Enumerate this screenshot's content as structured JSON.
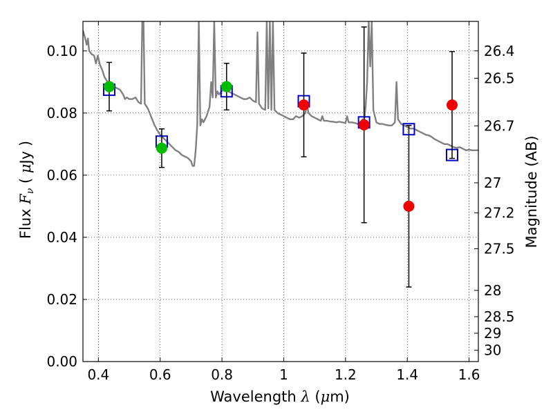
{
  "chart_data": {
    "type": "scatter",
    "title": "",
    "xlabel": "Wavelength  λ (μm)",
    "ylabel": "Flux  F_ν  ( μJy )",
    "ylabel_parts": {
      "prefix": "Flux  ",
      "F": "F",
      "nu": "ν",
      "open": "  ( ",
      "mu": "μ",
      "unit": "Jy )"
    },
    "xlabel_parts": {
      "prefix": "Wavelength  ",
      "lambda": "λ",
      "open": " (",
      "mu": "μ",
      "unit": "m)"
    },
    "y2label": "Magnitude (AB)",
    "xlim": [
      0.35,
      1.63
    ],
    "ylim": [
      0.0,
      0.1095
    ],
    "grid": true,
    "x_ticks": [
      {
        "v": 0.4,
        "label": "0.4"
      },
      {
        "v": 0.6,
        "label": "0.6"
      },
      {
        "v": 0.8,
        "label": "0.8"
      },
      {
        "v": 1.0,
        "label": "1"
      },
      {
        "v": 1.2,
        "label": "1.2"
      },
      {
        "v": 1.4,
        "label": "1.4"
      },
      {
        "v": 1.6,
        "label": "1.6"
      }
    ],
    "y_ticks": [
      {
        "v": 0.0,
        "label": "0.00"
      },
      {
        "v": 0.02,
        "label": "0.02"
      },
      {
        "v": 0.04,
        "label": "0.04"
      },
      {
        "v": 0.06,
        "label": "0.06"
      },
      {
        "v": 0.08,
        "label": "0.08"
      },
      {
        "v": 0.1,
        "label": "0.10"
      }
    ],
    "magnitude_ticks": [
      {
        "mag": 26.4,
        "label": "26.4"
      },
      {
        "mag": 26.5,
        "label": "26.5"
      },
      {
        "mag": 26.7,
        "label": "26.7"
      },
      {
        "mag": 27.0,
        "label": "27"
      },
      {
        "mag": 27.2,
        "label": "27.2"
      },
      {
        "mag": 27.5,
        "label": "27.5"
      },
      {
        "mag": 28.0,
        "label": "28"
      },
      {
        "mag": 28.5,
        "label": "28.5"
      },
      {
        "mag": 29.0,
        "label": "29"
      },
      {
        "mag": 30.0,
        "label": "30"
      }
    ],
    "series": [
      {
        "kind": "line",
        "color": "#808080",
        "points": [
          [
            0.35,
            0.1065
          ],
          [
            0.356,
            0.1045
          ],
          [
            0.362,
            0.102
          ],
          [
            0.366,
            0.104
          ],
          [
            0.37,
            0.1
          ],
          [
            0.378,
            0.099
          ],
          [
            0.386,
            0.0985
          ],
          [
            0.392,
            0.096
          ],
          [
            0.398,
            0.0985
          ],
          [
            0.405,
            0.0955
          ],
          [
            0.412,
            0.094
          ],
          [
            0.42,
            0.0915
          ],
          [
            0.43,
            0.09
          ],
          [
            0.44,
            0.089
          ],
          [
            0.45,
            0.0885
          ],
          [
            0.46,
            0.088
          ],
          [
            0.47,
            0.0875
          ],
          [
            0.48,
            0.086
          ],
          [
            0.486,
            0.0845
          ],
          [
            0.492,
            0.085
          ],
          [
            0.5,
            0.0845
          ],
          [
            0.51,
            0.0845
          ],
          [
            0.52,
            0.085
          ],
          [
            0.53,
            0.0835
          ],
          [
            0.538,
            0.083
          ],
          [
            0.542,
            0.1095
          ],
          [
            0.546,
            0.1095
          ],
          [
            0.55,
            0.083
          ],
          [
            0.56,
            0.0815
          ],
          [
            0.57,
            0.079
          ],
          [
            0.58,
            0.0765
          ],
          [
            0.59,
            0.0745
          ],
          [
            0.6,
            0.073
          ],
          [
            0.61,
            0.072
          ],
          [
            0.62,
            0.071
          ],
          [
            0.63,
            0.07
          ],
          [
            0.64,
            0.069
          ],
          [
            0.65,
            0.068
          ],
          [
            0.66,
            0.0675
          ],
          [
            0.67,
            0.0665
          ],
          [
            0.68,
            0.066
          ],
          [
            0.69,
            0.0655
          ],
          [
            0.7,
            0.0645
          ],
          [
            0.705,
            0.063
          ],
          [
            0.71,
            0.063
          ],
          [
            0.715,
            0.068
          ],
          [
            0.72,
            0.076
          ],
          [
            0.725,
            0.1095
          ],
          [
            0.73,
            0.076
          ],
          [
            0.735,
            0.078
          ],
          [
            0.74,
            0.077
          ],
          [
            0.75,
            0.079
          ],
          [
            0.76,
            0.082
          ],
          [
            0.765,
            0.09
          ],
          [
            0.77,
            0.085
          ],
          [
            0.775,
            0.1095
          ],
          [
            0.78,
            0.085
          ],
          [
            0.785,
            0.087
          ],
          [
            0.79,
            0.086
          ],
          [
            0.8,
            0.087
          ],
          [
            0.81,
            0.088
          ],
          [
            0.82,
            0.087
          ],
          [
            0.83,
            0.0865
          ],
          [
            0.84,
            0.086
          ],
          [
            0.85,
            0.0855
          ],
          [
            0.86,
            0.085
          ],
          [
            0.87,
            0.0845
          ],
          [
            0.88,
            0.0845
          ],
          [
            0.89,
            0.085
          ],
          [
            0.9,
            0.084
          ],
          [
            0.91,
            0.0835
          ],
          [
            0.915,
            0.106
          ],
          [
            0.92,
            0.083
          ],
          [
            0.93,
            0.0815
          ],
          [
            0.94,
            0.081
          ],
          [
            0.945,
            0.1095
          ],
          [
            0.95,
            0.0815
          ],
          [
            0.955,
            0.1095
          ],
          [
            0.96,
            0.081
          ],
          [
            0.965,
            0.1095
          ],
          [
            0.97,
            0.081
          ],
          [
            0.98,
            0.08
          ],
          [
            0.99,
            0.0795
          ],
          [
            1.0,
            0.079
          ],
          [
            1.01,
            0.0785
          ],
          [
            1.02,
            0.078
          ],
          [
            1.03,
            0.078
          ],
          [
            1.04,
            0.079
          ],
          [
            1.05,
            0.0785
          ],
          [
            1.06,
            0.079
          ],
          [
            1.07,
            0.08
          ],
          [
            1.075,
            0.083
          ],
          [
            1.08,
            0.08
          ],
          [
            1.09,
            0.079
          ],
          [
            1.1,
            0.0785
          ],
          [
            1.11,
            0.078
          ],
          [
            1.12,
            0.0775
          ],
          [
            1.125,
            0.079
          ],
          [
            1.13,
            0.0775
          ],
          [
            1.14,
            0.0775
          ],
          [
            1.15,
            0.0773
          ],
          [
            1.16,
            0.0772
          ],
          [
            1.17,
            0.077
          ],
          [
            1.18,
            0.0772
          ],
          [
            1.19,
            0.077
          ],
          [
            1.2,
            0.0768
          ],
          [
            1.205,
            0.079
          ],
          [
            1.21,
            0.077
          ],
          [
            1.22,
            0.077
          ],
          [
            1.23,
            0.0768
          ],
          [
            1.24,
            0.0765
          ],
          [
            1.25,
            0.0765
          ],
          [
            1.255,
            0.078
          ],
          [
            1.26,
            0.077
          ],
          [
            1.265,
            0.082
          ],
          [
            1.27,
            0.09
          ],
          [
            1.275,
            0.1095
          ],
          [
            1.28,
            0.095
          ],
          [
            1.285,
            0.1095
          ],
          [
            1.29,
            0.081
          ],
          [
            1.3,
            0.077
          ],
          [
            1.31,
            0.0765
          ],
          [
            1.32,
            0.0765
          ],
          [
            1.33,
            0.0762
          ],
          [
            1.34,
            0.076
          ],
          [
            1.35,
            0.076
          ],
          [
            1.36,
            0.077
          ],
          [
            1.365,
            0.09
          ],
          [
            1.37,
            0.078
          ],
          [
            1.38,
            0.0765
          ],
          [
            1.39,
            0.076
          ],
          [
            1.4,
            0.0755
          ],
          [
            1.41,
            0.075
          ],
          [
            1.42,
            0.075
          ],
          [
            1.43,
            0.0745
          ],
          [
            1.44,
            0.074
          ],
          [
            1.45,
            0.0735
          ],
          [
            1.46,
            0.073
          ],
          [
            1.47,
            0.0728
          ],
          [
            1.48,
            0.0722
          ],
          [
            1.49,
            0.0715
          ],
          [
            1.5,
            0.071
          ],
          [
            1.51,
            0.0705
          ],
          [
            1.52,
            0.07
          ],
          [
            1.53,
            0.07
          ],
          [
            1.54,
            0.0695
          ],
          [
            1.55,
            0.069
          ],
          [
            1.56,
            0.0688
          ],
          [
            1.57,
            0.069
          ],
          [
            1.58,
            0.0685
          ],
          [
            1.59,
            0.068
          ],
          [
            1.6,
            0.0682
          ],
          [
            1.61,
            0.068
          ],
          [
            1.62,
            0.068
          ],
          [
            1.63,
            0.068
          ]
        ]
      },
      {
        "kind": "squares",
        "color": "#0000cc",
        "points": [
          {
            "x": 0.435,
            "y": 0.0875
          },
          {
            "x": 0.605,
            "y": 0.0708
          },
          {
            "x": 0.815,
            "y": 0.087
          },
          {
            "x": 1.065,
            "y": 0.0838
          },
          {
            "x": 1.26,
            "y": 0.077
          },
          {
            "x": 1.405,
            "y": 0.0748
          },
          {
            "x": 1.545,
            "y": 0.0665
          }
        ]
      },
      {
        "kind": "points",
        "color": "#00bb00",
        "points": [
          {
            "x": 0.435,
            "y": 0.0885,
            "err": 0.0078
          },
          {
            "x": 0.605,
            "y": 0.0687,
            "err": 0.0062
          },
          {
            "x": 0.815,
            "y": 0.0885,
            "err": 0.0075
          }
        ]
      },
      {
        "kind": "points",
        "color": "#ee0000",
        "points": [
          {
            "x": 1.065,
            "y": 0.0826,
            "err": 0.0167
          },
          {
            "x": 1.26,
            "y": 0.0762,
            "err": 0.0315
          },
          {
            "x": 1.405,
            "y": 0.05,
            "err": 0.026
          },
          {
            "x": 1.545,
            "y": 0.0826,
            "err": 0.0172
          }
        ]
      }
    ]
  }
}
